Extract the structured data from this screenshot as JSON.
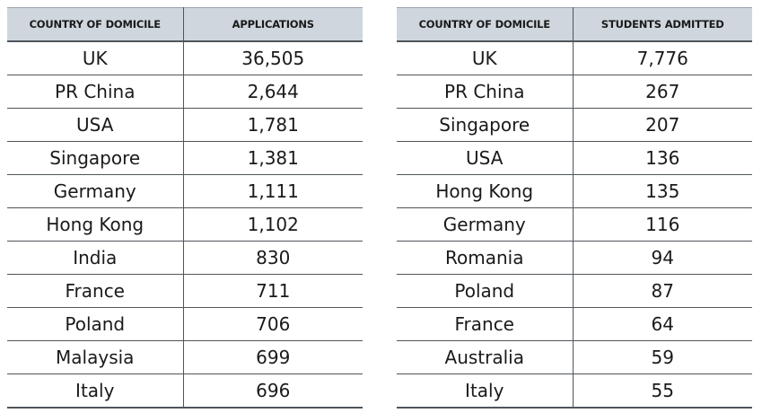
{
  "applications_table": {
    "headers": [
      "COUNTRY OF DOMICILE",
      "APPLICATIONS"
    ],
    "rows": [
      [
        "UK",
        "36,505"
      ],
      [
        "PR China",
        "2,644"
      ],
      [
        "USA",
        "1,781"
      ],
      [
        "Singapore",
        "1,381"
      ],
      [
        "Germany",
        "1,111"
      ],
      [
        "Hong Kong",
        "1,102"
      ],
      [
        "India",
        "830"
      ],
      [
        "France",
        "711"
      ],
      [
        "Poland",
        "706"
      ],
      [
        "Malaysia",
        "699"
      ],
      [
        "Italy",
        "696"
      ]
    ]
  },
  "admitted_table": {
    "headers": [
      "COUNTRY OF DOMICILE",
      "STUDENTS ADMITTED"
    ],
    "rows": [
      [
        "UK",
        "7,776"
      ],
      [
        "PR China",
        "267"
      ],
      [
        "Singapore",
        "207"
      ],
      [
        "USA",
        "136"
      ],
      [
        "Hong Kong",
        "135"
      ],
      [
        "Germany",
        "116"
      ],
      [
        "Romania",
        "94"
      ],
      [
        "Poland",
        "87"
      ],
      [
        "France",
        "64"
      ],
      [
        "Australia",
        "59"
      ],
      [
        "Italy",
        "55"
      ]
    ]
  },
  "colors": {
    "header_background": "#cfd6dd",
    "rule": "#4f555b"
  }
}
